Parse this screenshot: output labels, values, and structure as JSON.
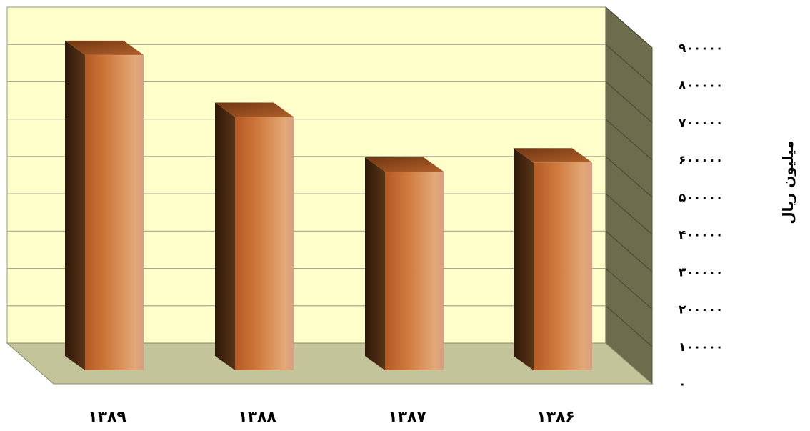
{
  "chart_data": {
    "type": "bar",
    "categories": [
      "۱۳۸۹",
      "۱۳۸۸",
      "۱۳۸۷",
      "۱۳۸۶"
    ],
    "values": [
      865000,
      695000,
      545000,
      570000
    ],
    "ylabel": "میلیون ریال",
    "ylim": [
      0,
      900000
    ],
    "yticks": [
      0,
      100000,
      200000,
      300000,
      400000,
      500000,
      600000,
      700000,
      800000,
      900000
    ],
    "ytick_labels": [
      "۰",
      "۱۰۰۰۰۰",
      "۲۰۰۰۰۰",
      "۳۰۰۰۰۰",
      "۴۰۰۰۰۰",
      "۵۰۰۰۰۰",
      "۶۰۰۰۰۰",
      "۷۰۰۰۰۰",
      "۸۰۰۰۰۰",
      "۹۰۰۰۰۰"
    ],
    "grid": true,
    "style": "3d-column",
    "colors": {
      "wall": "#ffffcc",
      "side_wall": "#6d6d4d",
      "floor": "#c4c49a",
      "bar_light": "#e0a070",
      "bar_mid": "#c0622a",
      "bar_side": "#4a2a12",
      "bar_top": "#a0501e"
    }
  }
}
